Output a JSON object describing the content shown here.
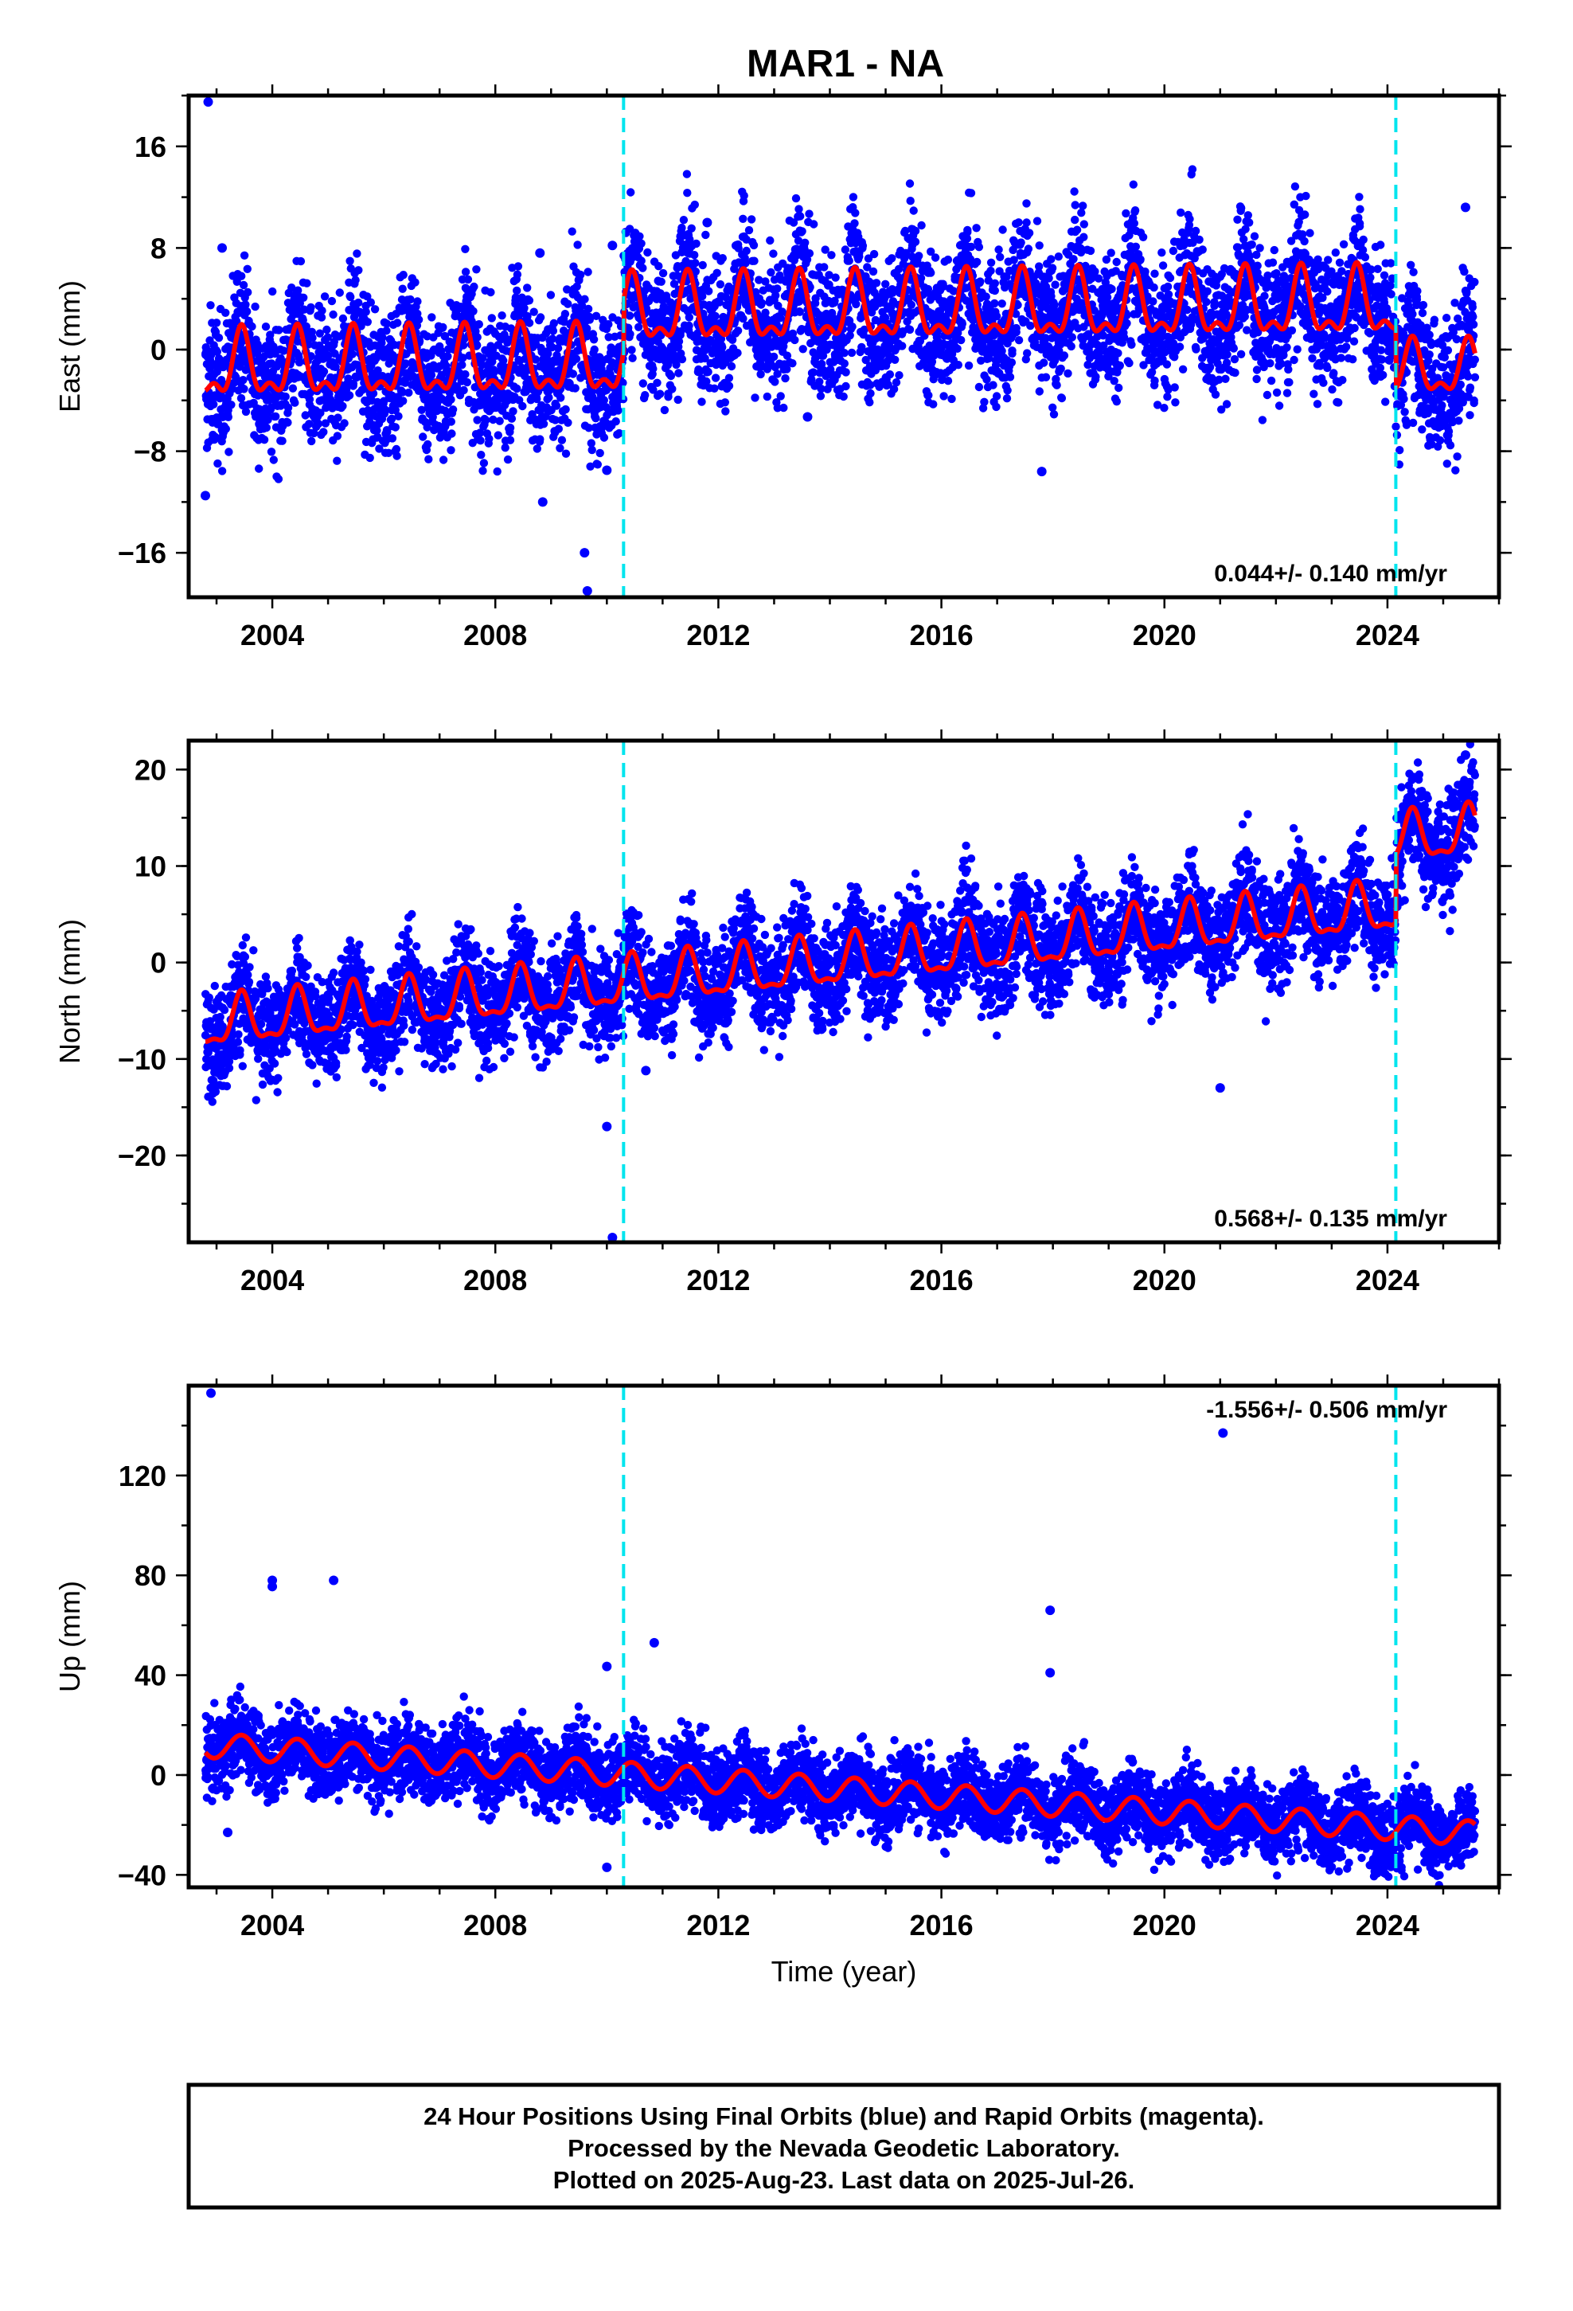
{
  "title": "MAR1 - NA",
  "colors": {
    "final_points": "#0000ff",
    "model_line": "#ff0000",
    "equipment_change": "#00e5ee",
    "frame": "#000000"
  },
  "x_tick_labels": [
    "2004",
    "2008",
    "2012",
    "2016",
    "2020",
    "2024"
  ],
  "chart_data": [
    {
      "type": "scatter",
      "ylabel": "East (mm)",
      "xlim": [
        2002.5,
        2026.0
      ],
      "ylim": [
        -19.5,
        20
      ],
      "yticks": [
        -16,
        -8,
        0,
        8,
        16
      ],
      "yticks_label": [
        "−16",
        "−8",
        "0",
        "8",
        "16"
      ],
      "rate_label": "0.044+/- 0.140 mm/yr",
      "rate_position": "bottom-right",
      "vertical_lines_x": [
        2010.3,
        2024.15
      ],
      "model": {
        "base_before": -2.0,
        "base_after": 2.0,
        "step_at": 2010.3,
        "trend_mm_per_yr": 0.044,
        "seasonal_amplitude": 3.3,
        "drop_at": 2024.15,
        "drop_to": -0.5
      },
      "scatter_spread_mm": 5,
      "outliers": [
        [
          2002.85,
          19.5
        ],
        [
          2002.8,
          -11.5
        ],
        [
          2003.1,
          8.0
        ],
        [
          2008.8,
          7.6
        ],
        [
          2008.85,
          -12.0
        ],
        [
          2009.4,
          4.6
        ],
        [
          2009.6,
          -16.0
        ],
        [
          2009.65,
          -19.0
        ],
        [
          2010.1,
          8.2
        ],
        [
          2010.0,
          -9.5
        ],
        [
          2011.8,
          10.0
        ],
        [
          2013.6,
          -5.3
        ],
        [
          2017.8,
          -9.6
        ],
        [
          2025.4,
          11.2
        ]
      ]
    },
    {
      "type": "scatter",
      "ylabel": "North (mm)",
      "xlim": [
        2002.5,
        2026.0
      ],
      "ylim": [
        -29,
        23
      ],
      "yticks": [
        -20,
        -10,
        0,
        10,
        20
      ],
      "yticks_label": [
        "−20",
        "−10",
        "0",
        "10",
        "20"
      ],
      "rate_label": "0.568+/- 0.135 mm/yr",
      "rate_position": "bottom-right",
      "vertical_lines_x": [
        2010.3,
        2024.15
      ],
      "model": {
        "start": -6.5,
        "trend_mm_per_yr": 0.568,
        "seasonal_amplitude": 3.0,
        "step_at": 2024.15,
        "step_mm": 7.0
      },
      "scatter_spread_mm": 5,
      "outliers": [
        [
          2010.0,
          -17.0
        ],
        [
          2010.1,
          -28.5
        ],
        [
          2010.7,
          -11.2
        ],
        [
          2021.0,
          -13.0
        ],
        [
          2025.4,
          21.5
        ]
      ]
    },
    {
      "type": "scatter",
      "ylabel": "Up (mm)",
      "xlabel": "Time (year)",
      "xlim": [
        2002.5,
        2026.0
      ],
      "ylim": [
        -45,
        156
      ],
      "yticks": [
        -40,
        0,
        40,
        80,
        120
      ],
      "yticks_label": [
        "−40",
        "0",
        "40",
        "80",
        "120"
      ],
      "rate_label": "-1.556+/- 0.506 mm/yr",
      "rate_position": "top-right",
      "vertical_lines_x": [
        2010.3,
        2024.15
      ],
      "model": {
        "start": 12.0,
        "trend_mm_per_yr": -1.556,
        "seasonal_amplitude": 5.0
      },
      "scatter_spread_mm": 14,
      "outliers": [
        [
          2002.9,
          153.0
        ],
        [
          2004.0,
          78.0
        ],
        [
          2004.0,
          75.5
        ],
        [
          2005.1,
          78.0
        ],
        [
          2010.0,
          43.5
        ],
        [
          2010.0,
          -37.0
        ],
        [
          2010.85,
          53.0
        ],
        [
          2017.95,
          66.0
        ],
        [
          2017.95,
          41.0
        ],
        [
          2021.05,
          137.0
        ],
        [
          2003.2,
          -23.0
        ]
      ]
    }
  ],
  "footer": {
    "line1": "24 Hour Positions Using Final Orbits (blue) and Rapid Orbits (magenta).",
    "line2": "Processed by the Nevada Geodetic Laboratory.",
    "line3": "Plotted on 2025-Aug-23. Last data on 2025-Jul-26."
  }
}
